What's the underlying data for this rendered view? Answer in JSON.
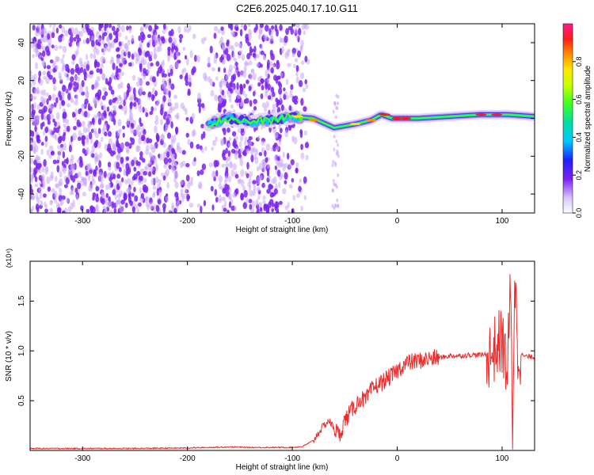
{
  "title": "C2E6.2025.040.17.10.G11",
  "colors": {
    "snr_line": "#ee2b2b",
    "scatter_purple": "#7a22f0",
    "scatter_light": "#c9a6f7"
  },
  "chart_data": [
    {
      "type": "heatmap",
      "xlabel": "Height of straight line (km)",
      "ylabel": "Frequency (Hz)",
      "xlim": [
        -350,
        131
      ],
      "ylim": [
        -50,
        50
      ],
      "xticks": [
        -300,
        -200,
        -100,
        0,
        100
      ],
      "yticks": [
        -40,
        -20,
        0,
        20,
        40
      ],
      "colorbar": {
        "label": "Normalized spectral amplitude",
        "ticks": [
          "0.0",
          "0.2",
          "0.4",
          "0.6",
          "0.8"
        ],
        "tick_values": [
          0.0,
          0.2,
          0.4,
          0.6,
          0.8
        ],
        "range": [
          0,
          1
        ],
        "colormap": "rainbow (white/violet low to red/magenta high)"
      },
      "features": {
        "noise_band_x": [
          -350,
          -95
        ],
        "signal_ridge_x": [
          -185,
          131
        ],
        "ridge_frequency_hz": [
          [
            -180,
            -3
          ],
          [
            -160,
            0
          ],
          [
            -140,
            -2
          ],
          [
            -120,
            -1
          ],
          [
            -100,
            1
          ],
          [
            -80,
            0
          ],
          [
            -60,
            -5
          ],
          [
            -40,
            -3
          ],
          [
            -25,
            -1
          ],
          [
            -15,
            2
          ],
          [
            -5,
            0
          ],
          [
            0,
            0
          ],
          [
            20,
            0
          ],
          [
            50,
            1
          ],
          [
            80,
            2
          ],
          [
            105,
            2
          ],
          [
            131,
            1
          ]
        ]
      }
    },
    {
      "type": "line",
      "xlabel": "Height of straight line (km)",
      "ylabel": "SNR (10 * v/v)",
      "scale_note": "(x10⁴)",
      "xlim": [
        -350,
        131
      ],
      "ylim": [
        0,
        1.9
      ],
      "xticks": [
        -300,
        -200,
        -100,
        0,
        100
      ],
      "yticks": [
        "0.5",
        "1.0",
        "1.5"
      ],
      "ytick_values": [
        0.5,
        1.0,
        1.5
      ],
      "series": [
        {
          "x": [
            -350,
            -300,
            -250,
            -200,
            -180,
            -160,
            -140,
            -120,
            -100,
            -90,
            -80,
            -75,
            -70,
            -65,
            -60,
            -55,
            -50,
            -45,
            -40,
            -35,
            -30,
            -25,
            -20,
            -15,
            -10,
            -5,
            0,
            5,
            10,
            20,
            30,
            40,
            50,
            60,
            70,
            80,
            90,
            95,
            100,
            105,
            108,
            110,
            112,
            115,
            120,
            125,
            131
          ],
          "y": [
            0.02,
            0.02,
            0.02,
            0.025,
            0.03,
            0.035,
            0.03,
            0.03,
            0.03,
            0.04,
            0.1,
            0.18,
            0.25,
            0.3,
            0.22,
            0.15,
            0.3,
            0.38,
            0.45,
            0.52,
            0.5,
            0.6,
            0.65,
            0.68,
            0.72,
            0.75,
            0.8,
            0.85,
            0.88,
            0.9,
            0.92,
            0.93,
            0.95,
            0.95,
            0.96,
            0.96,
            0.97,
            1.05,
            1.1,
            0.8,
            1.6,
            0.2,
            1.8,
            1.0,
            0.95,
            0.94,
            0.94
          ]
        }
      ]
    }
  ]
}
